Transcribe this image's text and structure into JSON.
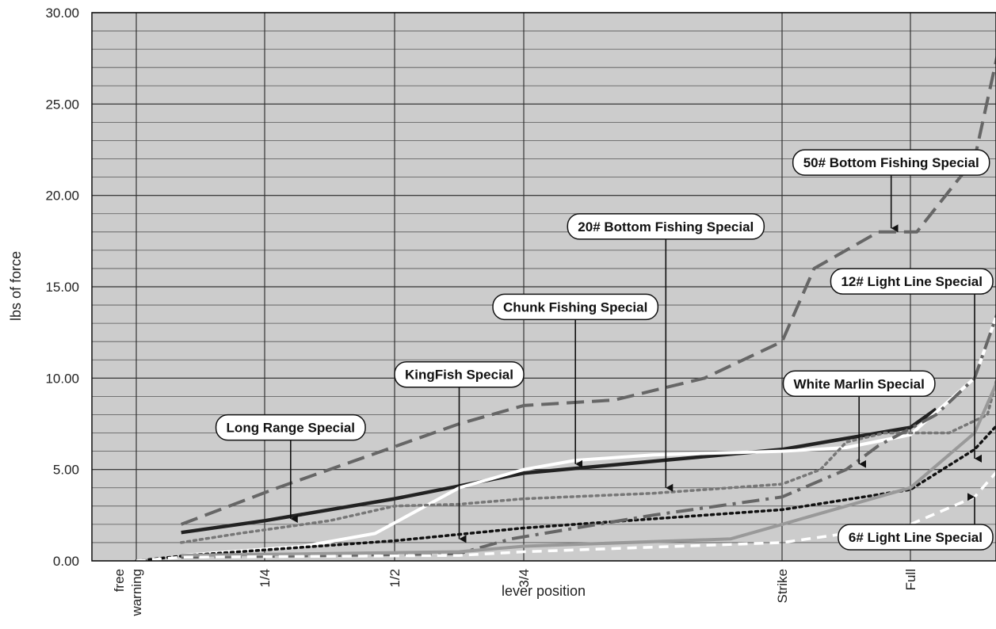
{
  "chart_data": {
    "type": "line",
    "xlabel": "lever position",
    "ylabel": "lbs of force",
    "categories": [
      "free",
      "warning",
      "1/4",
      "1/2",
      "3/4",
      "Strike",
      "Full"
    ],
    "ylim": [
      0,
      30
    ],
    "yticks": [
      "0.00",
      "5.00",
      "10.00",
      "15.00",
      "20.00",
      "25.00",
      "30.00"
    ],
    "y_minor_step": 1,
    "grid": true,
    "background": "#cccccc",
    "series": [
      {
        "name": "50# Bottom Fishing Special",
        "color": "#666666",
        "dash": "long-dash",
        "width": 4,
        "points": [
          [
            1.35,
            2.0
          ],
          [
            2.1,
            4.0
          ],
          [
            2.9,
            6.0
          ],
          [
            3.5,
            7.5
          ],
          [
            4.0,
            8.5
          ],
          [
            4.35,
            8.8
          ],
          [
            4.7,
            10.0
          ],
          [
            5.0,
            12.0
          ],
          [
            5.25,
            16.0
          ],
          [
            5.75,
            18.0
          ],
          [
            6.05,
            18.0
          ],
          [
            6.5,
            22.0
          ],
          [
            6.75,
            30.0
          ]
        ]
      },
      {
        "name": "Long Range Special",
        "color": "#222222",
        "dash": "solid",
        "width": 4.5,
        "points": [
          [
            1.35,
            1.55
          ],
          [
            2.0,
            2.2
          ],
          [
            3.0,
            3.4
          ],
          [
            4.0,
            4.8
          ],
          [
            5.0,
            6.1
          ],
          [
            6.0,
            7.3
          ],
          [
            6.2,
            8.3
          ]
        ]
      },
      {
        "name": "Chunk Fishing Special",
        "color": "#ffffff",
        "dash": "solid",
        "width": 4,
        "points": [
          [
            1.35,
            0.3
          ],
          [
            2.3,
            0.8
          ],
          [
            2.85,
            1.5
          ],
          [
            3.5,
            4.0
          ],
          [
            3.8,
            4.6
          ],
          [
            4.0,
            5.0
          ],
          [
            4.2,
            5.5
          ],
          [
            4.5,
            5.8
          ],
          [
            5.0,
            6.0
          ],
          [
            5.5,
            6.2
          ],
          [
            6.0,
            6.9
          ],
          [
            6.5,
            10.0
          ],
          [
            6.75,
            15.0
          ]
        ]
      },
      {
        "name": "20# Bottom Fishing Special",
        "color": "#777777",
        "dash": "dotted",
        "width": 3.5,
        "points": [
          [
            1.35,
            1.0
          ],
          [
            1.8,
            1.5
          ],
          [
            2.5,
            2.2
          ],
          [
            3.0,
            3.0
          ],
          [
            3.5,
            3.1
          ],
          [
            4.0,
            3.4
          ],
          [
            4.5,
            3.7
          ],
          [
            5.0,
            4.2
          ],
          [
            5.3,
            5.0
          ],
          [
            5.5,
            6.5
          ],
          [
            5.8,
            7.0
          ],
          [
            6.0,
            7.0
          ],
          [
            6.3,
            7.0
          ],
          [
            6.6,
            8.0
          ],
          [
            6.75,
            12.0
          ]
        ]
      },
      {
        "name": "KingFish Special",
        "color": "#111111",
        "dash": "dotted",
        "width": 3.5,
        "points": [
          [
            1.0,
            0.0
          ],
          [
            1.4,
            0.3
          ],
          [
            2.0,
            0.6
          ],
          [
            3.0,
            1.1
          ],
          [
            4.0,
            1.8
          ],
          [
            5.0,
            2.8
          ],
          [
            6.0,
            3.9
          ],
          [
            6.5,
            6.1
          ],
          [
            6.75,
            8.0
          ]
        ]
      },
      {
        "name": "White Marlin Special",
        "color": "#666666",
        "dash": "dash-dot",
        "width": 4,
        "points": [
          [
            1.35,
            0.2
          ],
          [
            2.5,
            0.3
          ],
          [
            3.5,
            0.4
          ],
          [
            3.9,
            1.2
          ],
          [
            4.5,
            2.5
          ],
          [
            5.0,
            3.5
          ],
          [
            5.5,
            5.0
          ],
          [
            5.75,
            6.3
          ],
          [
            6.2,
            8.0
          ],
          [
            6.5,
            10.0
          ],
          [
            6.75,
            15.0
          ]
        ]
      },
      {
        "name": "12# Light Line Special",
        "color": "#999999",
        "dash": "solid",
        "width": 4,
        "points": [
          [
            1.35,
            0.3
          ],
          [
            2.5,
            0.4
          ],
          [
            3.5,
            0.5
          ],
          [
            4.0,
            0.8
          ],
          [
            4.8,
            1.2
          ],
          [
            5.0,
            2.0
          ],
          [
            5.5,
            3.0
          ],
          [
            6.0,
            4.0
          ],
          [
            6.5,
            7.0
          ],
          [
            6.75,
            11.0
          ]
        ]
      },
      {
        "name": "6# Light Line Special",
        "color": "#ffffff",
        "dash": "dashed",
        "width": 3.5,
        "points": [
          [
            1.0,
            0.0
          ],
          [
            1.35,
            0.2
          ],
          [
            2.5,
            0.25
          ],
          [
            3.5,
            0.3
          ],
          [
            4.0,
            0.5
          ],
          [
            5.0,
            1.0
          ],
          [
            6.0,
            2.0
          ],
          [
            6.5,
            3.5
          ],
          [
            6.75,
            5.5
          ]
        ]
      }
    ],
    "callouts": [
      {
        "label": "50# Bottom Fishing Special",
        "box_x": 5.85,
        "box_y": 21.8,
        "arrow_x": 5.85,
        "arrow_y": 18.2
      },
      {
        "label": "20# Bottom Fishing Special",
        "box_x": 4.55,
        "box_y": 18.3,
        "arrow_x": 4.55,
        "arrow_y": 4.0
      },
      {
        "label": "12# Light Line Special",
        "box_x": 6.55,
        "box_y": 15.3,
        "arrow_x": 6.5,
        "arrow_y": 5.6
      },
      {
        "label": "Chunk Fishing Special",
        "box_x": 4.2,
        "box_y": 13.9,
        "arrow_x": 4.2,
        "arrow_y": 5.3
      },
      {
        "label": "KingFish Special",
        "box_x": 3.5,
        "box_y": 10.2,
        "arrow_x": 3.5,
        "arrow_y": 1.2
      },
      {
        "label": "White Marlin Special",
        "box_x": 5.6,
        "box_y": 9.7,
        "arrow_x": 5.6,
        "arrow_y": 5.3
      },
      {
        "label": "Long Range Special",
        "box_x": 2.2,
        "box_y": 7.3,
        "arrow_x": 2.2,
        "arrow_y": 2.3
      },
      {
        "label": "6# Light Line Special",
        "box_x": 6.9,
        "box_y": 1.3,
        "arrow_x": 6.5,
        "arrow_y": 3.5,
        "arrow_up": true
      }
    ]
  }
}
